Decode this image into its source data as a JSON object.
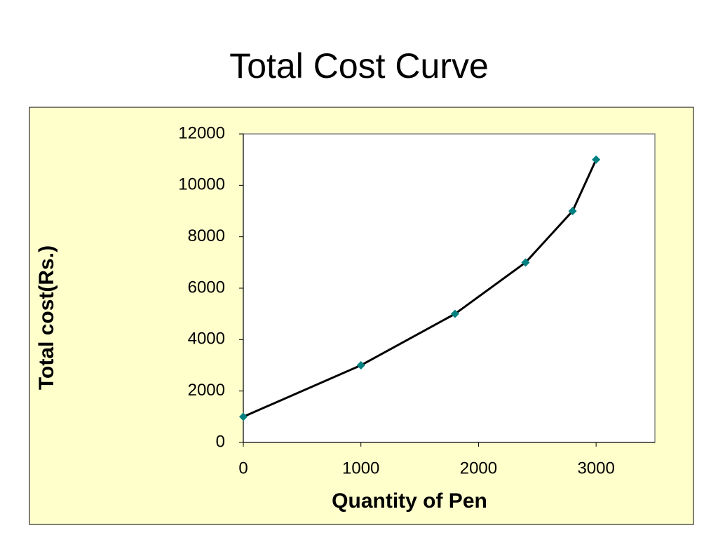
{
  "chart_data": {
    "type": "line",
    "title": "Total Cost Curve",
    "x_label": "Quantity of Pen",
    "y_label": "Total cost(Rs.)",
    "x": [
      0,
      1000,
      1800,
      2400,
      2800,
      3000
    ],
    "series": [
      {
        "values": [
          1000,
          3000,
          5000,
          7000,
          9000,
          11000
        ],
        "color": "#008080",
        "line_color": "#000000"
      }
    ],
    "xlim": [
      0,
      3500
    ],
    "xticks": [
      0,
      1000,
      2000,
      3000
    ],
    "ylim": [
      0,
      12000
    ],
    "yticks": [
      0,
      2000,
      4000,
      6000,
      8000,
      10000,
      12000
    ],
    "grid": false,
    "background": "#ffffcc"
  }
}
